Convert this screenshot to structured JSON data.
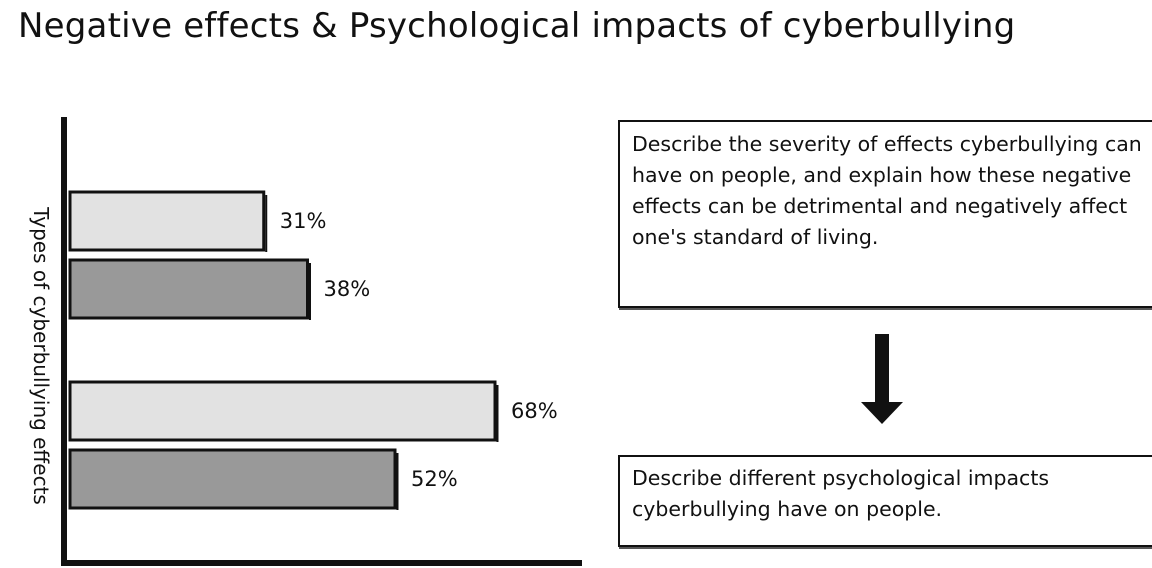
{
  "title": "Negative effects & Psychological impacts of cyberbullying",
  "chart_data": {
    "type": "bar",
    "orientation": "horizontal",
    "ylabel": "Types of cyberbullying effects",
    "groups": 2,
    "bars": [
      {
        "value": 31,
        "label": "31%",
        "color": "#e2e2e2"
      },
      {
        "value": 38,
        "label": "38%",
        "color": "#999999"
      },
      {
        "value": 68,
        "label": "68%",
        "color": "#e2e2e2"
      },
      {
        "value": 52,
        "label": "52%",
        "color": "#999999"
      }
    ],
    "xlim": [
      0,
      100
    ],
    "grid": false
  },
  "boxes": {
    "top_text": "Describe the severity of effects cyberbullying can have on people, and explain how these negative effects can be detrimental and negatively affect one's standard of living.",
    "bottom_text": "Describe different psychological impacts cyberbullying have on people."
  },
  "colors": {
    "light_bar": "#e2e2e2",
    "dark_bar": "#999999",
    "ink": "#111111"
  },
  "icons": {
    "arrow": "arrow-down-icon"
  }
}
